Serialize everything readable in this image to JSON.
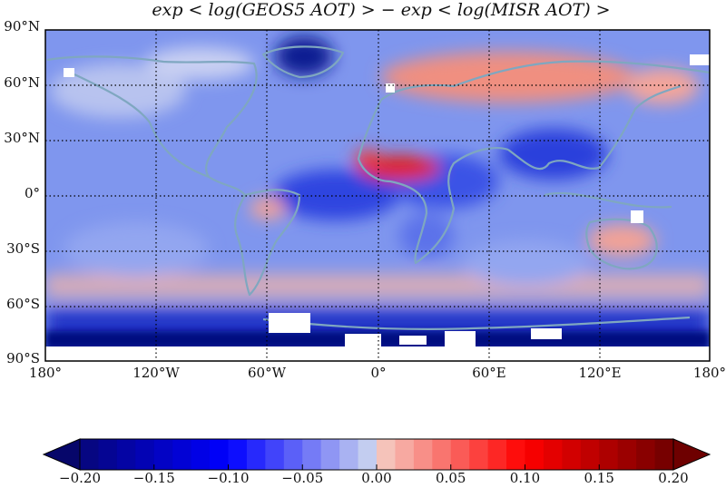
{
  "title": "exp < log(GEOS5 AOT) >  − exp < log(MISR AOT) >",
  "lat_labels": [
    "90°N",
    "60°N",
    "30°N",
    "0°",
    "30°S",
    "60°S",
    "90°S"
  ],
  "lon_labels": [
    "180°",
    "120°W",
    "60°W",
    "0°",
    "60°E",
    "120°E",
    "180°"
  ],
  "colorbar": {
    "ticks": [
      "−0.20",
      "−0.15",
      "−0.10",
      "−0.05",
      "0.00",
      "0.05",
      "0.10",
      "0.15",
      "0.20"
    ],
    "range": [
      -0.2,
      0.2
    ],
    "colors": {
      "low": "#08087a",
      "mid_low": "#0000ff",
      "pale_blue": "#c8d2f0",
      "pale_red": "#f5c8be",
      "mid_high": "#ff0000",
      "high": "#6e0000"
    },
    "extend": "both"
  },
  "colors": {
    "coastline": "#7fa7c0",
    "gridline": "#000000",
    "missing_data": "#ffffff"
  }
}
